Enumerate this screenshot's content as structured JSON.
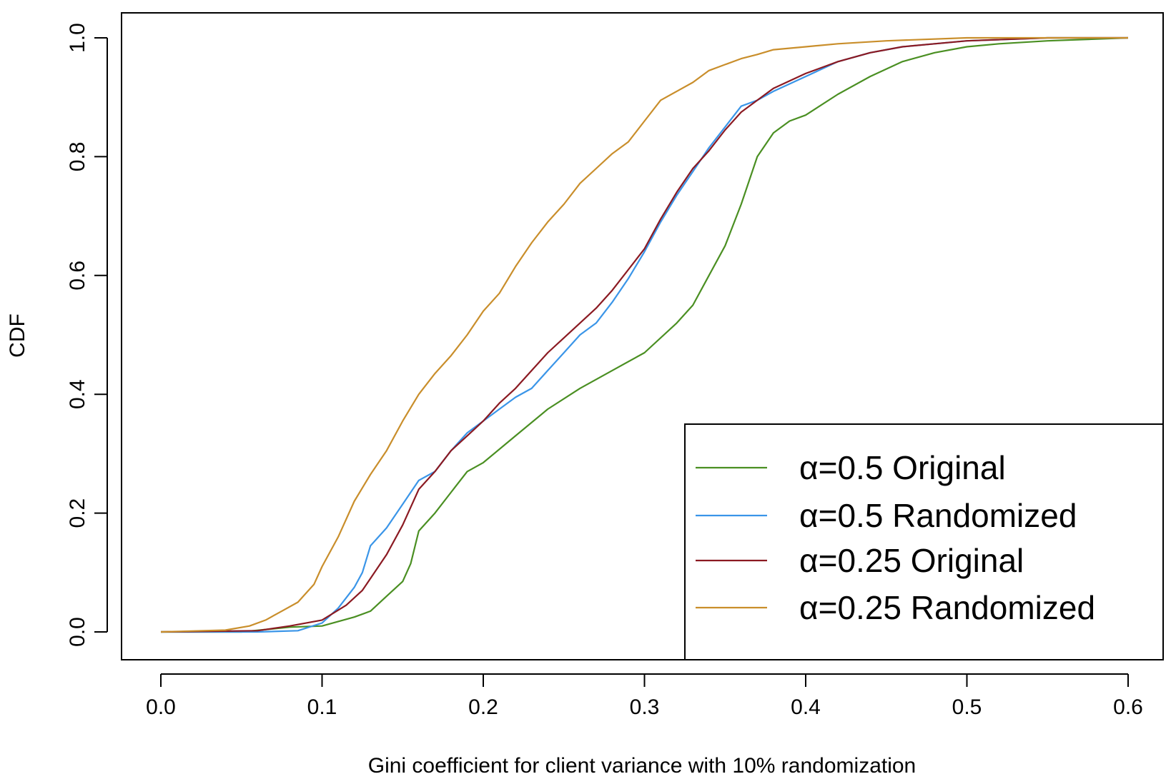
{
  "chart_data": {
    "type": "line",
    "title": "",
    "xlabel": "Gini coefficient for client variance with 10% randomization",
    "ylabel": "CDF",
    "xlim": [
      0.0,
      0.6
    ],
    "ylim": [
      0.0,
      1.0
    ],
    "x_ticks": [
      "0.0",
      "0.1",
      "0.2",
      "0.3",
      "0.4",
      "0.5",
      "0.6"
    ],
    "y_ticks": [
      "0.0",
      "0.2",
      "0.4",
      "0.6",
      "0.8",
      "1.0"
    ],
    "grid": false,
    "legend_position": "bottom-right",
    "series": [
      {
        "name": "α=0.5 Original",
        "color": "#4a8f22",
        "x": [
          0.0,
          0.05,
          0.08,
          0.1,
          0.12,
          0.13,
          0.14,
          0.15,
          0.155,
          0.16,
          0.17,
          0.18,
          0.19,
          0.2,
          0.22,
          0.24,
          0.26,
          0.28,
          0.3,
          0.32,
          0.33,
          0.34,
          0.35,
          0.36,
          0.37,
          0.38,
          0.39,
          0.4,
          0.42,
          0.44,
          0.46,
          0.48,
          0.5,
          0.52,
          0.55,
          0.6
        ],
        "y": [
          0.0,
          0.0,
          0.008,
          0.01,
          0.025,
          0.035,
          0.06,
          0.085,
          0.115,
          0.17,
          0.2,
          0.235,
          0.27,
          0.285,
          0.33,
          0.375,
          0.41,
          0.44,
          0.47,
          0.52,
          0.55,
          0.6,
          0.65,
          0.72,
          0.8,
          0.84,
          0.86,
          0.87,
          0.905,
          0.935,
          0.96,
          0.975,
          0.985,
          0.99,
          0.995,
          1.0
        ]
      },
      {
        "name": "α=0.5 Randomized",
        "color": "#3a95e8",
        "x": [
          0.0,
          0.06,
          0.085,
          0.1,
          0.11,
          0.12,
          0.125,
          0.13,
          0.14,
          0.15,
          0.16,
          0.17,
          0.18,
          0.19,
          0.2,
          0.21,
          0.22,
          0.23,
          0.24,
          0.25,
          0.26,
          0.27,
          0.28,
          0.29,
          0.3,
          0.31,
          0.32,
          0.33,
          0.34,
          0.35,
          0.36,
          0.37,
          0.38,
          0.4,
          0.42,
          0.44,
          0.46,
          0.48,
          0.5,
          0.55,
          0.6
        ],
        "y": [
          0.0,
          0.0,
          0.002,
          0.015,
          0.04,
          0.075,
          0.1,
          0.145,
          0.175,
          0.215,
          0.255,
          0.27,
          0.305,
          0.335,
          0.355,
          0.375,
          0.395,
          0.41,
          0.44,
          0.47,
          0.5,
          0.52,
          0.555,
          0.595,
          0.64,
          0.69,
          0.735,
          0.775,
          0.815,
          0.85,
          0.885,
          0.895,
          0.91,
          0.935,
          0.96,
          0.975,
          0.985,
          0.99,
          0.995,
          1.0,
          1.0
        ]
      },
      {
        "name": "α=0.25 Original",
        "color": "#8b1a22",
        "x": [
          0.0,
          0.06,
          0.08,
          0.1,
          0.115,
          0.125,
          0.13,
          0.14,
          0.15,
          0.16,
          0.17,
          0.18,
          0.19,
          0.2,
          0.21,
          0.22,
          0.23,
          0.24,
          0.25,
          0.26,
          0.27,
          0.28,
          0.29,
          0.3,
          0.31,
          0.32,
          0.33,
          0.34,
          0.35,
          0.36,
          0.37,
          0.38,
          0.4,
          0.42,
          0.44,
          0.46,
          0.48,
          0.5,
          0.55,
          0.6
        ],
        "y": [
          0.0,
          0.002,
          0.01,
          0.02,
          0.045,
          0.07,
          0.09,
          0.13,
          0.18,
          0.24,
          0.27,
          0.305,
          0.33,
          0.355,
          0.385,
          0.41,
          0.44,
          0.47,
          0.495,
          0.52,
          0.545,
          0.575,
          0.61,
          0.645,
          0.695,
          0.74,
          0.78,
          0.81,
          0.845,
          0.875,
          0.895,
          0.915,
          0.94,
          0.96,
          0.975,
          0.985,
          0.99,
          0.995,
          1.0,
          1.0
        ]
      },
      {
        "name": "α=0.25 Randomized",
        "color": "#c98e2b",
        "x": [
          0.0,
          0.04,
          0.055,
          0.065,
          0.075,
          0.085,
          0.095,
          0.1,
          0.11,
          0.12,
          0.13,
          0.14,
          0.15,
          0.16,
          0.17,
          0.18,
          0.19,
          0.2,
          0.21,
          0.22,
          0.23,
          0.24,
          0.25,
          0.26,
          0.27,
          0.28,
          0.29,
          0.3,
          0.31,
          0.32,
          0.33,
          0.34,
          0.35,
          0.36,
          0.37,
          0.38,
          0.4,
          0.42,
          0.45,
          0.5,
          0.55,
          0.6
        ],
        "y": [
          0.0,
          0.003,
          0.01,
          0.02,
          0.035,
          0.05,
          0.08,
          0.11,
          0.16,
          0.22,
          0.265,
          0.305,
          0.355,
          0.4,
          0.435,
          0.465,
          0.5,
          0.54,
          0.57,
          0.615,
          0.655,
          0.69,
          0.72,
          0.755,
          0.78,
          0.805,
          0.825,
          0.86,
          0.895,
          0.91,
          0.925,
          0.945,
          0.955,
          0.965,
          0.972,
          0.98,
          0.985,
          0.99,
          0.995,
          1.0,
          1.0,
          1.0
        ]
      }
    ]
  }
}
